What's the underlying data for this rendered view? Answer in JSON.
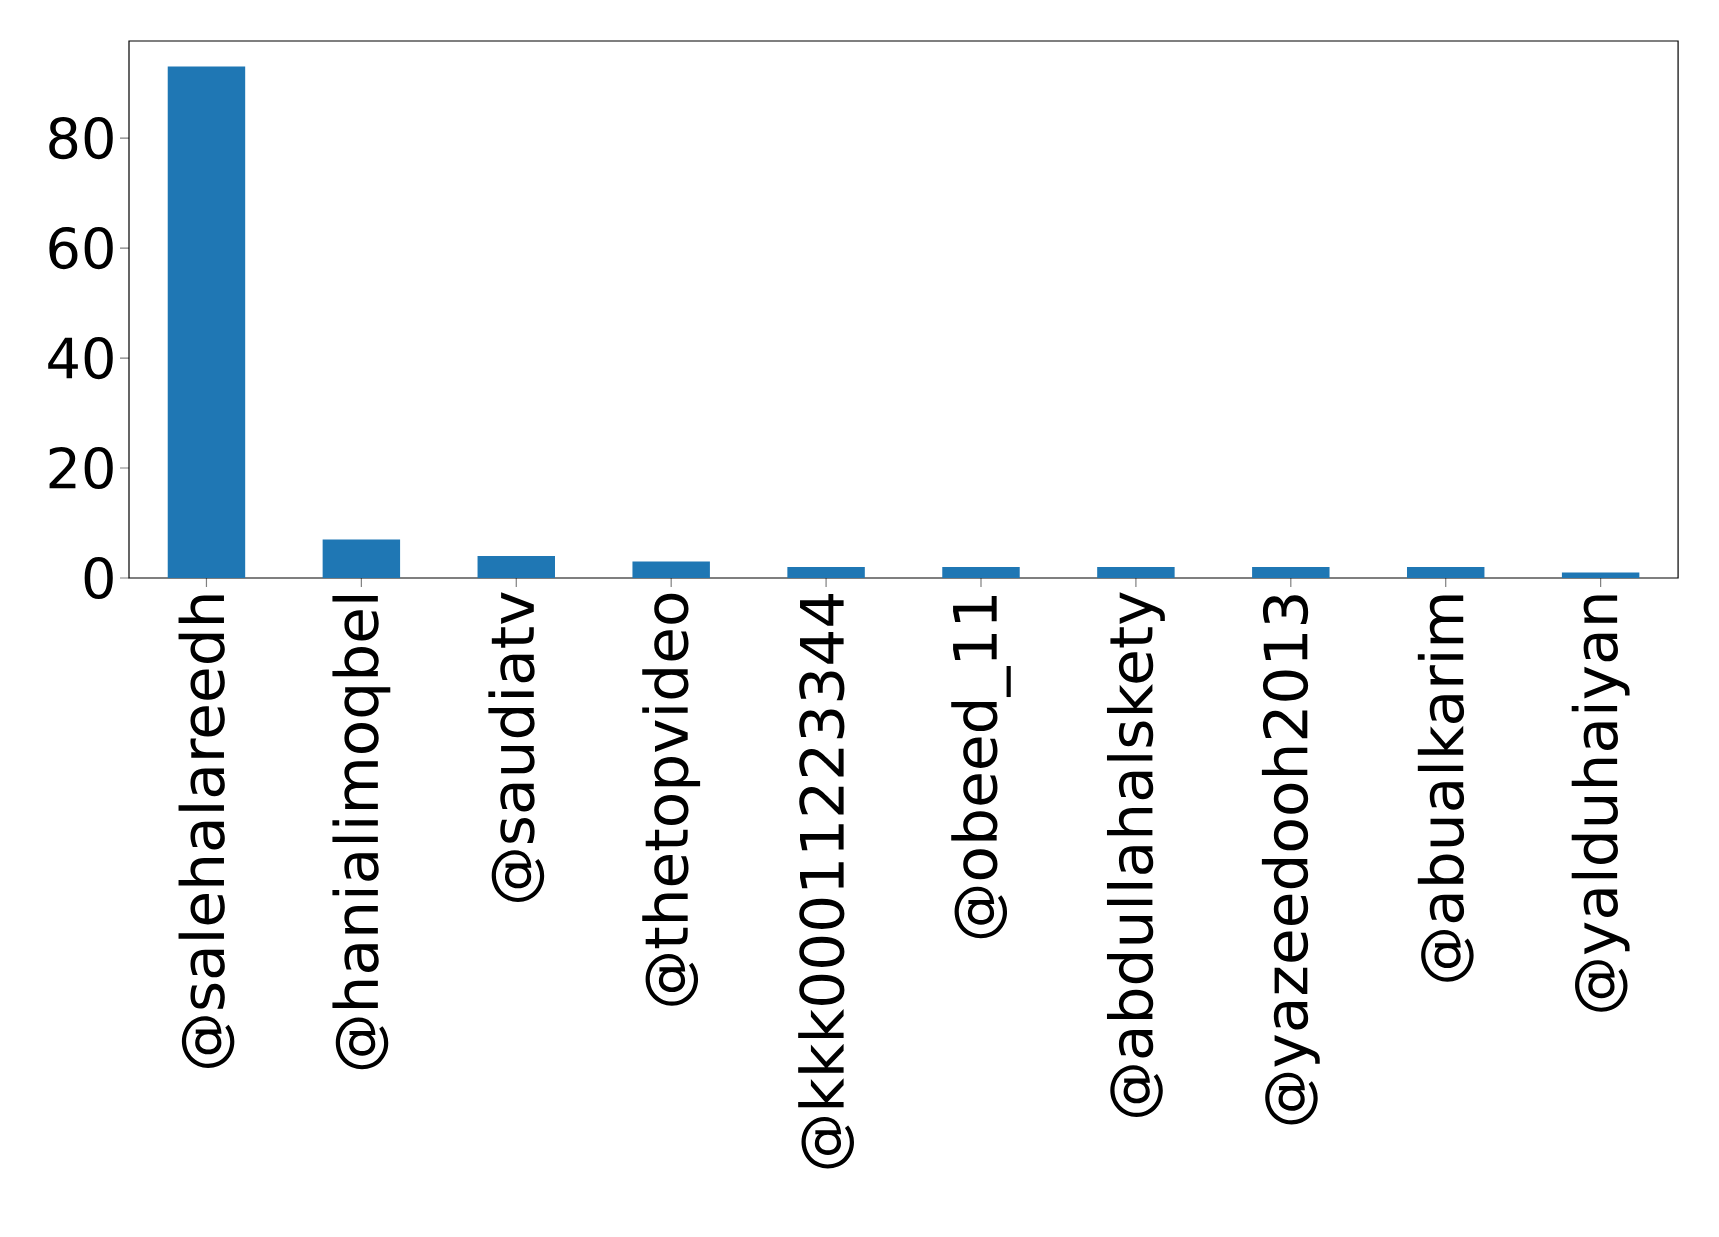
{
  "chart_data": {
    "type": "bar",
    "categories": [
      "@salehalareedh",
      "@hanialimoqbel",
      "@saudiatv",
      "@thetopvideo",
      "@kkk00011223344",
      "@obeed_11",
      "@abdullahalskety",
      "@yazeedooh2013",
      "@abualkarim",
      "@yalduhaiyan"
    ],
    "values": [
      93,
      7,
      4,
      3,
      2,
      2,
      2,
      2,
      2,
      1
    ],
    "color": "#1f77b4",
    "ylim": [
      0,
      97.65
    ],
    "yticks": [
      0,
      20,
      40,
      60,
      80
    ],
    "grid": false
  }
}
